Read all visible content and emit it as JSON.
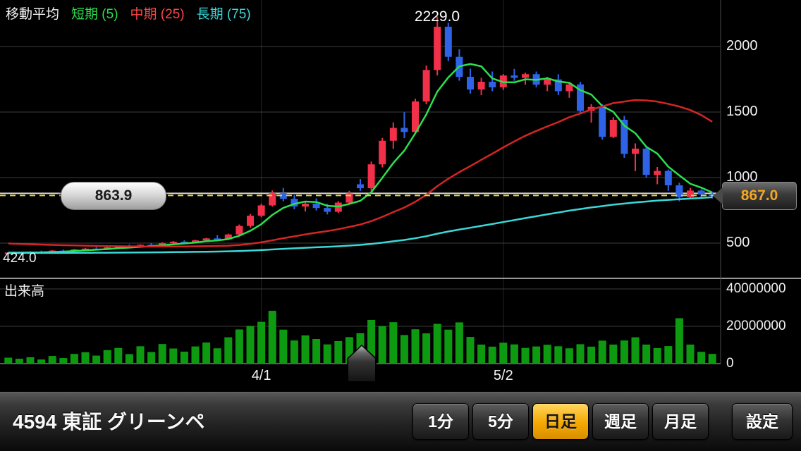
{
  "legend": {
    "title": "移動平均",
    "items": [
      {
        "label": "短期 (5)",
        "color": "#2be04e"
      },
      {
        "label": "中期 (25)",
        "color": "#ff4545"
      },
      {
        "label": "長期 (75)",
        "color": "#3bd8d8"
      }
    ]
  },
  "annotations": {
    "high_label": "2229.0",
    "low_label": "424.0",
    "price_bubble": "863.9",
    "price_tag": "867.0",
    "volume_title": "出来高"
  },
  "chart_data": {
    "type": "candlestick+volume",
    "title": "4594 daily chart with moving averages",
    "fields": [
      "open",
      "high",
      "low",
      "close",
      "volume_millions"
    ],
    "volume_unit": 1000000,
    "period_high": 2229.0,
    "period_low": 424.0,
    "current_price_line": 863.9,
    "reference_line": 880,
    "last_price": 867.0,
    "moving_averages": {
      "short_window": 5,
      "mid_window": 25,
      "long_window": 75
    },
    "price_axis_ticks": [
      2000,
      1500,
      1000,
      500
    ],
    "volume_axis_ticks": [
      40000000,
      20000000,
      0
    ],
    "x_ticks": [
      {
        "label": "4/1",
        "index": 23
      },
      {
        "label": "5/2",
        "index": 45
      }
    ],
    "candles": [
      [
        425,
        432,
        424,
        428,
        3.2
      ],
      [
        428,
        436,
        424,
        426,
        2.6
      ],
      [
        426,
        438,
        424,
        435,
        3.4
      ],
      [
        435,
        443,
        429,
        431,
        2.2
      ],
      [
        431,
        446,
        429,
        443,
        4.1
      ],
      [
        443,
        451,
        437,
        440,
        3.0
      ],
      [
        440,
        456,
        438,
        452,
        5.2
      ],
      [
        452,
        463,
        448,
        458,
        6.1
      ],
      [
        458,
        470,
        451,
        455,
        4.3
      ],
      [
        455,
        473,
        450,
        468,
        7.2
      ],
      [
        468,
        481,
        461,
        476,
        8.4
      ],
      [
        476,
        489,
        470,
        472,
        5.1
      ],
      [
        472,
        491,
        468,
        487,
        9.3
      ],
      [
        487,
        501,
        479,
        482,
        6.2
      ],
      [
        482,
        506,
        478,
        501,
        10.5
      ],
      [
        501,
        516,
        494,
        511,
        8.1
      ],
      [
        511,
        521,
        499,
        504,
        6.4
      ],
      [
        504,
        526,
        500,
        521,
        9.2
      ],
      [
        521,
        541,
        515,
        536,
        11.3
      ],
      [
        536,
        561,
        529,
        528,
        8.2
      ],
      [
        528,
        572,
        524,
        566,
        14.1
      ],
      [
        566,
        642,
        558,
        631,
        18.3
      ],
      [
        631,
        722,
        618,
        709,
        20.2
      ],
      [
        709,
        801,
        698,
        788,
        22.4
      ],
      [
        788,
        902,
        778,
        881,
        28.3
      ],
      [
        881,
        921,
        818,
        838,
        18.2
      ],
      [
        838,
        868,
        758,
        779,
        12.4
      ],
      [
        779,
        821,
        741,
        801,
        15.1
      ],
      [
        801,
        841,
        749,
        768,
        13.2
      ],
      [
        768,
        799,
        719,
        739,
        10.3
      ],
      [
        739,
        821,
        731,
        809,
        12.1
      ],
      [
        809,
        899,
        799,
        879,
        14.2
      ],
      [
        949,
        989,
        899,
        919,
        16.3
      ],
      [
        919,
        1122,
        901,
        1101,
        23.4
      ],
      [
        1101,
        1302,
        1078,
        1281,
        20.1
      ],
      [
        1281,
        1421,
        1219,
        1379,
        22.2
      ],
      [
        1379,
        1499,
        1301,
        1348,
        15.3
      ],
      [
        1348,
        1602,
        1339,
        1581,
        18.4
      ],
      [
        1581,
        1855,
        1559,
        1821,
        16.2
      ],
      [
        1821,
        2229,
        1779,
        2151,
        21.3
      ],
      [
        2151,
        2181,
        1889,
        1921,
        18.2
      ],
      [
        1921,
        1979,
        1739,
        1769,
        22.1
      ],
      [
        1769,
        1831,
        1641,
        1672,
        14.3
      ],
      [
        1672,
        1761,
        1629,
        1731,
        10.2
      ],
      [
        1731,
        1809,
        1659,
        1689,
        9.1
      ],
      [
        1689,
        1789,
        1669,
        1779,
        11.2
      ],
      [
        1779,
        1829,
        1739,
        1761,
        10.3
      ],
      [
        1761,
        1801,
        1709,
        1789,
        8.4
      ],
      [
        1789,
        1809,
        1689,
        1709,
        9.2
      ],
      [
        1709,
        1769,
        1659,
        1749,
        10.1
      ],
      [
        1749,
        1789,
        1629,
        1659,
        9.3
      ],
      [
        1659,
        1729,
        1609,
        1711,
        8.2
      ],
      [
        1711,
        1731,
        1489,
        1509,
        10.4
      ],
      [
        1509,
        1561,
        1419,
        1539,
        9.1
      ],
      [
        1539,
        1559,
        1289,
        1311,
        12.3
      ],
      [
        1311,
        1461,
        1301,
        1441,
        10.2
      ],
      [
        1441,
        1471,
        1151,
        1181,
        12.4
      ],
      [
        1181,
        1261,
        1049,
        1221,
        14.1
      ],
      [
        1221,
        1241,
        999,
        1021,
        10.2
      ],
      [
        1021,
        1081,
        949,
        1051,
        8.3
      ],
      [
        1051,
        1061,
        899,
        941,
        9.4
      ],
      [
        941,
        961,
        819,
        851,
        24.3
      ],
      [
        851,
        921,
        839,
        901,
        10.2
      ],
      [
        901,
        911,
        849,
        871,
        6.3
      ],
      [
        871,
        891,
        841,
        867,
        5.2
      ]
    ]
  },
  "bottom_bar": {
    "title": "4594 東証 グリーンペ",
    "period_buttons": [
      {
        "label": "1分",
        "selected": false
      },
      {
        "label": "5分",
        "selected": false
      },
      {
        "label": "日足",
        "selected": true
      },
      {
        "label": "週足",
        "selected": false
      },
      {
        "label": "月足",
        "selected": false
      }
    ],
    "settings_label": "設定"
  },
  "colors": {
    "candle_up": "#f2304a",
    "candle_down": "#2e63e8",
    "ma_short": "#2be04e",
    "ma_mid": "#d42525",
    "ma_long": "#3bd8d8",
    "volume_bar": "#0d9a10",
    "price_line": "#e6d23c",
    "reference_line": "#ececec",
    "selected_tab": "#f5a800",
    "tag_text": "#f5a623"
  }
}
